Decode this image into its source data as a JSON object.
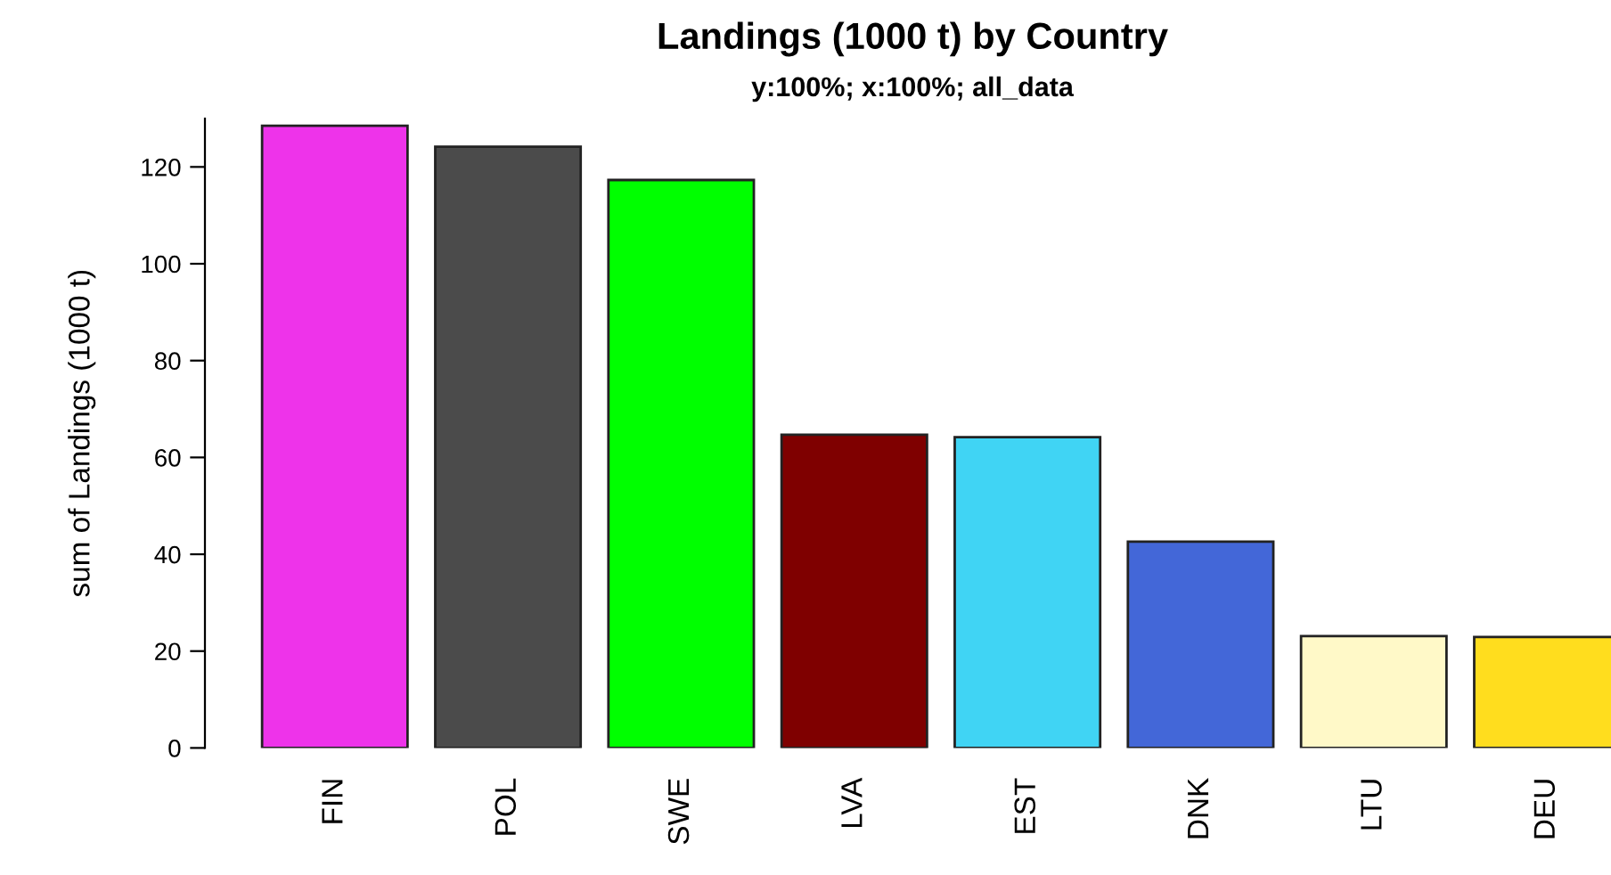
{
  "chart_data": {
    "type": "bar",
    "title": "Landings (1000 t) by Country",
    "subtitle": "y:100%; x:100%; all_data",
    "ylabel": "sum of Landings (1000 t)",
    "categories": [
      "FIN",
      "POL",
      "SWE",
      "LVA",
      "EST",
      "DNK",
      "LTU",
      "DEU"
    ],
    "values": [
      128.5,
      124.2,
      117.3,
      64.7,
      64.2,
      42.6,
      23.1,
      22.9
    ],
    "colors": [
      "#ee33ea",
      "#4b4b4b",
      "#00ff00",
      "#7f0000",
      "#40d4f4",
      "#4367d8",
      "#fff9c8",
      "#ffdd1e"
    ],
    "ylim": [
      0,
      130
    ],
    "yticks": [
      0,
      20,
      40,
      60,
      80,
      100,
      120
    ],
    "grid": false,
    "legend": false
  }
}
